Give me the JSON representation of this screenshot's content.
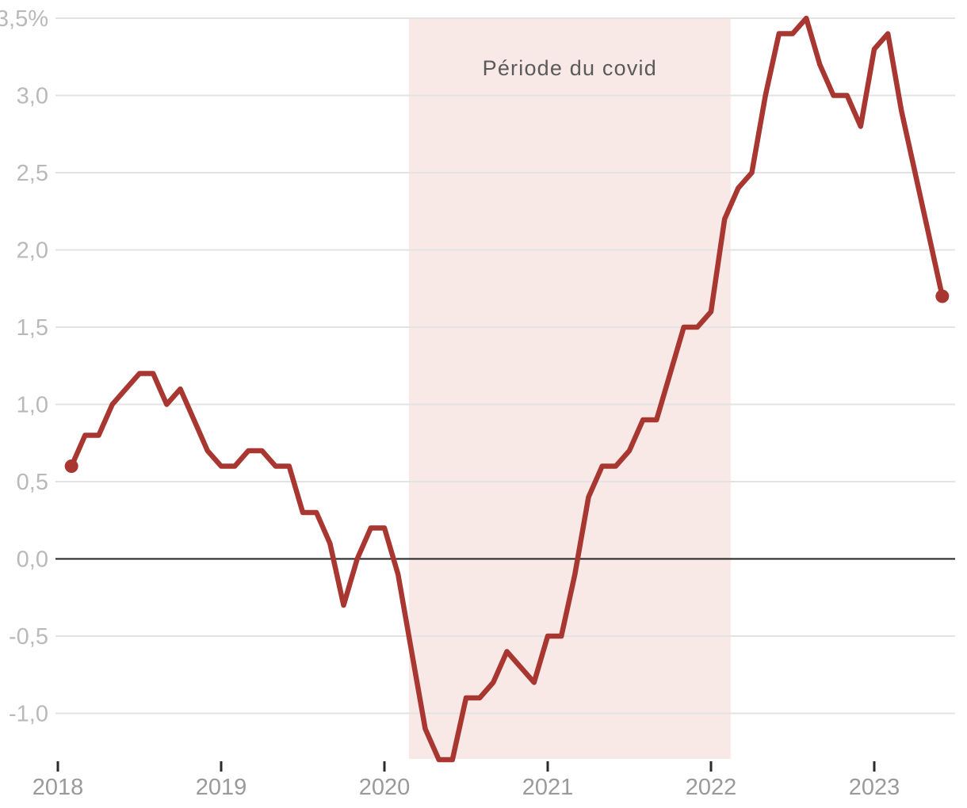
{
  "chart_data": {
    "type": "line",
    "title": "",
    "xlabel": "",
    "ylabel": "",
    "unit": "%",
    "frequency": "monthly",
    "grid": true,
    "ylim": [
      -1.3,
      3.5
    ],
    "xlim_years": [
      2018,
      2023.5
    ],
    "zero_line_value": 0.0,
    "y_ticks": [
      {
        "value": 3.5,
        "label": "3,5%"
      },
      {
        "value": 3.0,
        "label": "3,0"
      },
      {
        "value": 2.5,
        "label": "2,5"
      },
      {
        "value": 2.0,
        "label": "2,0"
      },
      {
        "value": 1.5,
        "label": "1,5"
      },
      {
        "value": 1.0,
        "label": "1,0"
      },
      {
        "value": 0.5,
        "label": "0,5"
      },
      {
        "value": 0.0,
        "label": "0,0"
      },
      {
        "value": -0.5,
        "label": "-0,5"
      },
      {
        "value": -1.0,
        "label": "-1,0"
      }
    ],
    "x_ticks": [
      {
        "year": 2018,
        "label": "2018"
      },
      {
        "year": 2019,
        "label": "2019"
      },
      {
        "year": 2020,
        "label": "2020"
      },
      {
        "year": 2021,
        "label": "2021"
      },
      {
        "year": 2022,
        "label": "2022"
      },
      {
        "year": 2023,
        "label": "2023"
      }
    ],
    "covid_band": {
      "label": "Période du covid",
      "from_year": 2020.15,
      "to_year": 2022.12
    },
    "series": [
      {
        "name": "serie-principale",
        "start_month": "2018-02",
        "end_month": "2023-06",
        "monthly_values": [
          0.6,
          0.8,
          0.8,
          1.0,
          1.1,
          1.2,
          1.2,
          1.0,
          1.1,
          0.9,
          0.7,
          0.6,
          0.6,
          0.7,
          0.7,
          0.6,
          0.6,
          0.3,
          0.3,
          0.1,
          -0.3,
          0.0,
          0.2,
          0.2,
          -0.1,
          -0.6,
          -1.1,
          -1.3,
          -1.3,
          -0.9,
          -0.9,
          -0.8,
          -0.6,
          -0.7,
          -0.8,
          -0.5,
          -0.5,
          -0.1,
          0.4,
          0.6,
          0.6,
          0.7,
          0.9,
          0.9,
          1.2,
          1.5,
          1.5,
          1.6,
          2.2,
          2.4,
          2.5,
          3.0,
          3.4,
          3.4,
          3.5,
          3.2,
          3.0,
          3.0,
          2.8,
          3.3,
          3.4,
          2.9,
          2.5,
          2.1,
          1.7
        ],
        "first_point_dot": true,
        "last_point_dot": true
      }
    ],
    "colors": {
      "line": "#a83731",
      "band": "#f8e9e6",
      "grid": "#e3e3e3",
      "zero_line": "#222222",
      "tick": "#2b2b2b",
      "y_label": "#b9b9b9",
      "x_label": "#9a9a9a",
      "annotation": "#5a5a5a",
      "background": "#ffffff"
    }
  }
}
